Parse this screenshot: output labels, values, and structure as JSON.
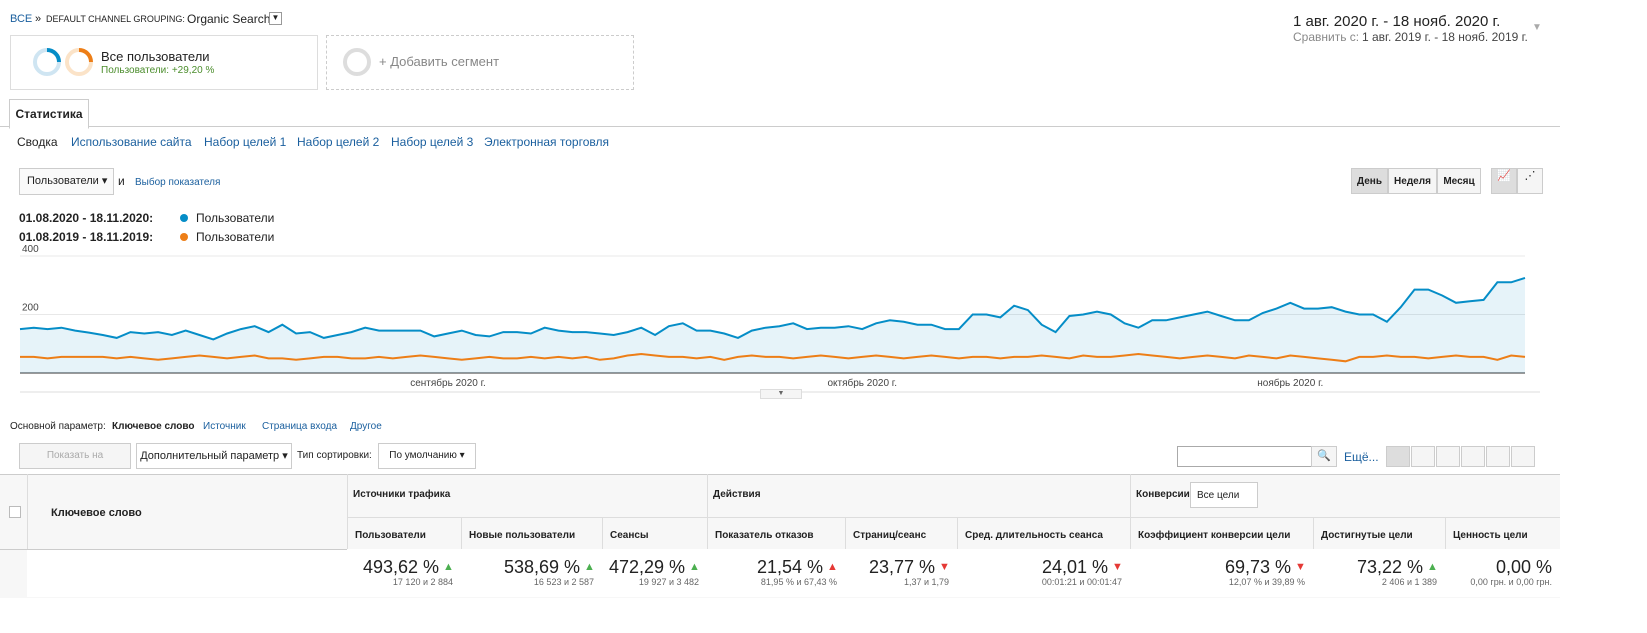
{
  "breadcrumb": {
    "root": "ВСЕ",
    "separator": "»",
    "dimension": "DEFAULT CHANNEL GROUPING:",
    "value": "Organic Search"
  },
  "date_range": {
    "current": "1 авг. 2020 г. - 18 нояб. 2020 г.",
    "compare_label": "Сравнить с:",
    "compare": "1 авг. 2019 г. - 18 нояб. 2019 г."
  },
  "segments": [
    {
      "name": "Все пользователи",
      "detail": "Пользователи: +29,20 %"
    },
    {
      "name": "+ Добавить сегмент"
    }
  ],
  "tab": "Статистика",
  "subtabs": [
    "Сводка",
    "Использование сайта",
    "Набор целей 1",
    "Набор целей 2",
    "Набор целей 3",
    "Электронная торговля"
  ],
  "metric_select": "Пользователи",
  "and": "и",
  "choose_metric": "Выбор показателя",
  "granularity": [
    "День",
    "Неделя",
    "Месяц"
  ],
  "chart_data": {
    "type": "line",
    "categories": [
      null,
      null,
      null,
      null,
      null,
      null,
      null,
      null,
      null,
      null,
      null,
      null,
      null,
      null,
      null,
      null,
      null,
      null,
      null,
      null,
      null,
      null,
      null,
      null,
      null,
      null,
      null,
      null,
      null,
      null,
      null,
      "сентябрь 2020 г.",
      null,
      null,
      null,
      null,
      null,
      null,
      null,
      null,
      null,
      null,
      null,
      null,
      null,
      null,
      null,
      null,
      null,
      null,
      null,
      null,
      null,
      null,
      null,
      null,
      null,
      null,
      null,
      null,
      null,
      "октябрь 2020 г.",
      null,
      null,
      null,
      null,
      null,
      null,
      null,
      null,
      null,
      null,
      null,
      null,
      null,
      null,
      null,
      null,
      null,
      null,
      null,
      null,
      null,
      null,
      null,
      null,
      null,
      null,
      null,
      null,
      null,
      null,
      "ноябрь 2020 г.",
      null,
      null,
      null,
      null,
      null,
      null,
      null,
      null,
      null,
      null,
      null,
      null,
      null,
      null,
      null,
      null,
      null
    ],
    "series": [
      {
        "name": "Пользователи",
        "period": "01.08.2020 - 18.11.2020:",
        "color": "#058dc7",
        "values": [
          150,
          155,
          150,
          155,
          145,
          138,
          130,
          120,
          140,
          135,
          140,
          130,
          145,
          130,
          115,
          135,
          150,
          160,
          140,
          165,
          135,
          140,
          120,
          130,
          140,
          155,
          145,
          145,
          145,
          145,
          125,
          135,
          145,
          130,
          125,
          140,
          140,
          135,
          155,
          145,
          140,
          140,
          135,
          130,
          140,
          155,
          130,
          160,
          170,
          145,
          145,
          135,
          120,
          145,
          155,
          160,
          170,
          150,
          155,
          155,
          160,
          150,
          170,
          180,
          175,
          165,
          165,
          150,
          150,
          200,
          200,
          190,
          230,
          215,
          165,
          140,
          195,
          200,
          210,
          200,
          170,
          155,
          180,
          180,
          190,
          200,
          210,
          195,
          180,
          180,
          205,
          220,
          240,
          220,
          220,
          225,
          210,
          200,
          200,
          175,
          225,
          285,
          285,
          265,
          240,
          245,
          250,
          310,
          310,
          325
        ]
      },
      {
        "name": "Пользователи",
        "period": "01.08.2019 - 18.11.2019:",
        "color": "#ed7e17",
        "values": [
          55,
          55,
          50,
          55,
          55,
          55,
          55,
          50,
          55,
          50,
          45,
          50,
          55,
          60,
          55,
          50,
          55,
          60,
          50,
          50,
          45,
          50,
          55,
          55,
          50,
          50,
          55,
          50,
          55,
          60,
          55,
          50,
          45,
          50,
          55,
          50,
          50,
          55,
          50,
          55,
          50,
          55,
          45,
          50,
          60,
          65,
          60,
          55,
          55,
          50,
          55,
          45,
          55,
          60,
          55,
          55,
          50,
          55,
          60,
          55,
          50,
          55,
          60,
          55,
          50,
          55,
          60,
          55,
          50,
          55,
          55,
          50,
          55,
          55,
          60,
          55,
          50,
          60,
          55,
          55,
          60,
          65,
          60,
          55,
          50,
          55,
          60,
          55,
          50,
          60,
          55,
          50,
          60,
          55,
          50,
          45,
          40,
          55,
          55,
          60,
          55,
          55,
          50,
          55,
          60,
          55,
          55,
          45,
          60,
          55
        ]
      }
    ],
    "ylim": [
      0,
      400
    ],
    "yticks": [
      200,
      400
    ],
    "grid": true
  },
  "primary_dimension": {
    "label": "Основной параметр:",
    "options": [
      "Ключевое слово",
      "Источник",
      "Страница входа",
      "Другое"
    ]
  },
  "toolbar": {
    "plot": "Показать на диаграмме",
    "secondary": "Дополнительный параметр",
    "sort_label": "Тип сортировки:",
    "sort": "По умолчанию",
    "more": "Ещё..."
  },
  "table": {
    "dimension": "Ключевое слово",
    "groups": [
      {
        "name": "Источники трафика"
      },
      {
        "name": "Действия"
      },
      {
        "name": "Конверсии",
        "select": "Все цели"
      }
    ],
    "columns": [
      {
        "name": "Пользователи",
        "total": "493,62 %",
        "detail": "17 120 и 2 884",
        "arrow": "up",
        "arrow_color": "#4caf50"
      },
      {
        "name": "Новые пользователи",
        "total": "538,69 %",
        "detail": "16 523 и 2 587",
        "arrow": "up",
        "arrow_color": "#4caf50"
      },
      {
        "name": "Сеансы",
        "total": "472,29 %",
        "detail": "19 927 и 3 482",
        "arrow": "up",
        "arrow_color": "#4caf50"
      },
      {
        "name": "Показатель отказов",
        "total": "21,54 %",
        "detail": "81,95 % и 67,43 %",
        "arrow": "up",
        "arrow_color": "#e53935"
      },
      {
        "name": "Страниц/сеанс",
        "total": "23,77 %",
        "detail": "1,37 и 1,79",
        "arrow": "down",
        "arrow_color": "#e53935"
      },
      {
        "name": "Сред. длительность сеанса",
        "total": "24,01 %",
        "detail": "00:01:21 и 00:01:47",
        "arrow": "down",
        "arrow_color": "#e53935"
      },
      {
        "name": "Коэффициент конверсии цели",
        "total": "69,73 %",
        "detail": "12,07 % и 39,89 %",
        "arrow": "down",
        "arrow_color": "#e53935"
      },
      {
        "name": "Достигнутые цели",
        "total": "73,22 %",
        "detail": "2 406 и 1 389",
        "arrow": "up",
        "arrow_color": "#4caf50"
      },
      {
        "name": "Ценность цели",
        "total": "0,00 %",
        "detail": "0,00 грн. и 0,00 грн."
      }
    ]
  }
}
